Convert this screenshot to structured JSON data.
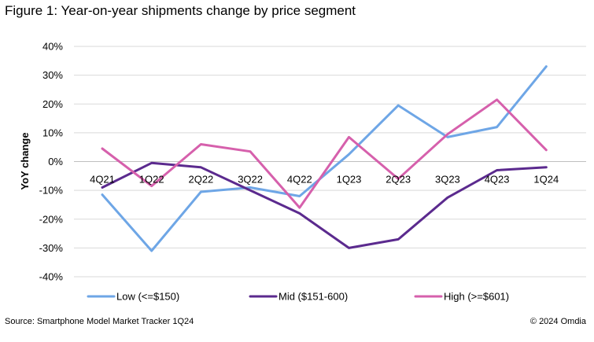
{
  "title": "Figure 1: Year-on-year shipments change by price segment",
  "source": "Source: Smartphone Model Market Tracker 1Q24",
  "copyright": "© 2024 Omdia",
  "chart_data": {
    "type": "line",
    "title": "Figure 1: Year-on-year shipments change by price segment",
    "xlabel": "",
    "ylabel": "YoY change",
    "ylim": [
      -40,
      40
    ],
    "yticks": [
      40,
      30,
      20,
      10,
      0,
      -10,
      -20,
      -30,
      -40
    ],
    "ytick_labels": [
      "40%",
      "30%",
      "20%",
      "10%",
      "0%",
      "-10%",
      "-20%",
      "-30%",
      "-40%"
    ],
    "grid": true,
    "legend_position": "bottom",
    "categories": [
      "4Q21",
      "1Q22",
      "2Q22",
      "3Q22",
      "4Q22",
      "1Q23",
      "2Q23",
      "3Q23",
      "4Q23",
      "1Q24"
    ],
    "series": [
      {
        "name": "Low (<=$150)",
        "color": "#6ea6e6",
        "values": [
          -11.5,
          -31,
          -10.5,
          -9,
          -12,
          2.5,
          19.5,
          8.5,
          12,
          33
        ]
      },
      {
        "name": "Mid ($151-600)",
        "color": "#5b2a8e",
        "values": [
          -9,
          -0.5,
          -2,
          -10,
          -18,
          -30,
          -27,
          -12.5,
          -3,
          -2
        ]
      },
      {
        "name": "High (>=$601)",
        "color": "#d660ac",
        "values": [
          4.5,
          -8.5,
          6,
          3.5,
          -16,
          8.5,
          -6,
          9.5,
          21.5,
          4
        ]
      }
    ]
  }
}
